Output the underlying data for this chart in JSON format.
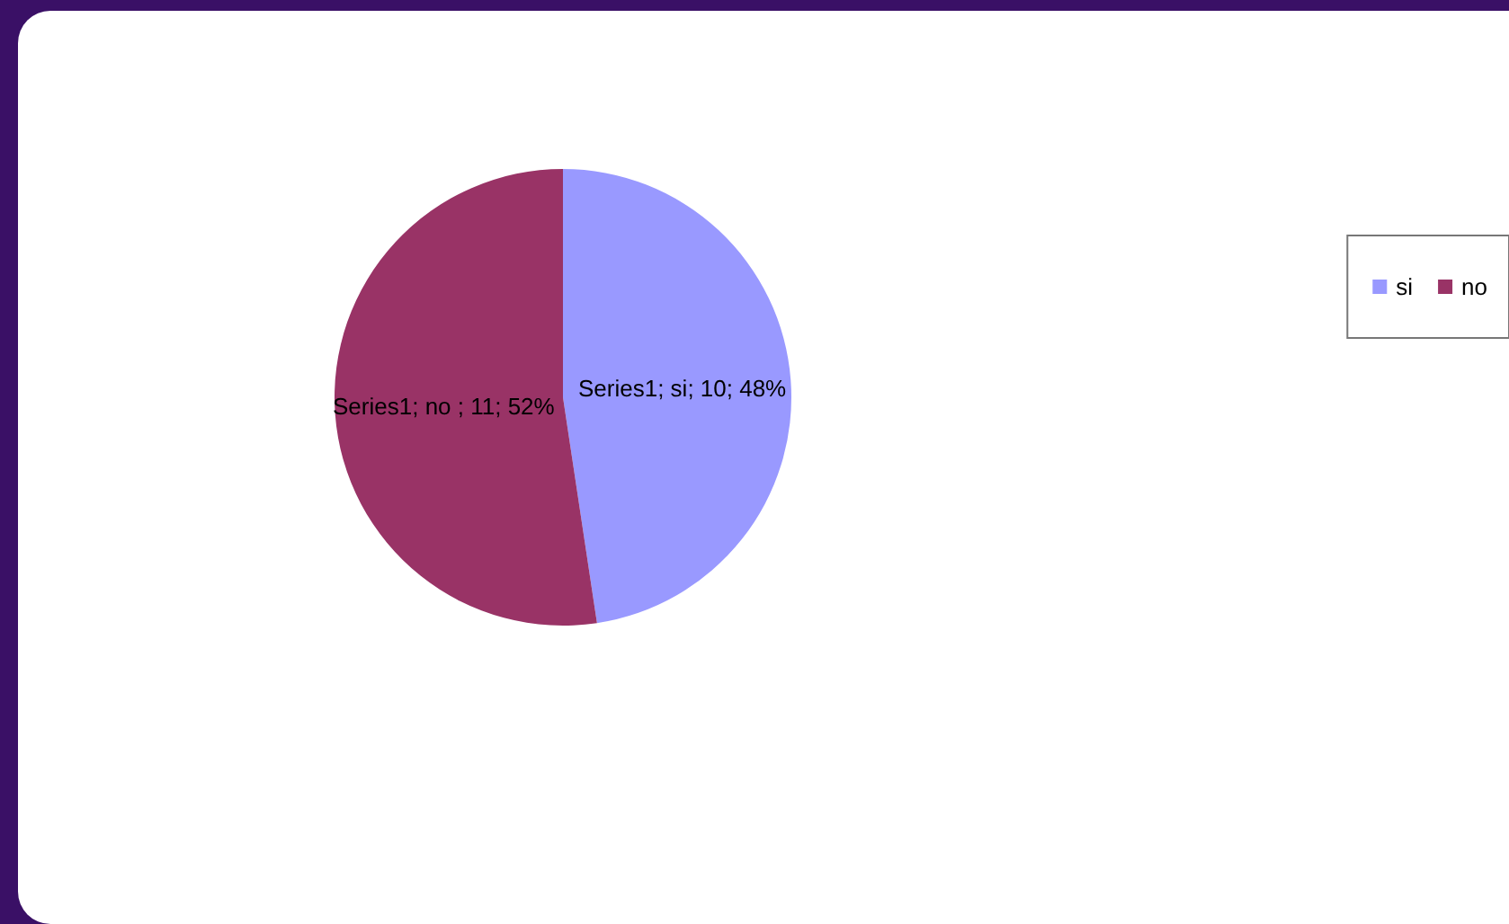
{
  "chart_data": {
    "type": "pie",
    "categories": [
      "si",
      "no"
    ],
    "values": [
      10,
      11
    ],
    "colors": [
      "#9999ff",
      "#993366"
    ],
    "value_labels": [
      "Series1; si; 10; 48%",
      "Series1; no ; 11; 52%"
    ],
    "legend": "right"
  }
}
